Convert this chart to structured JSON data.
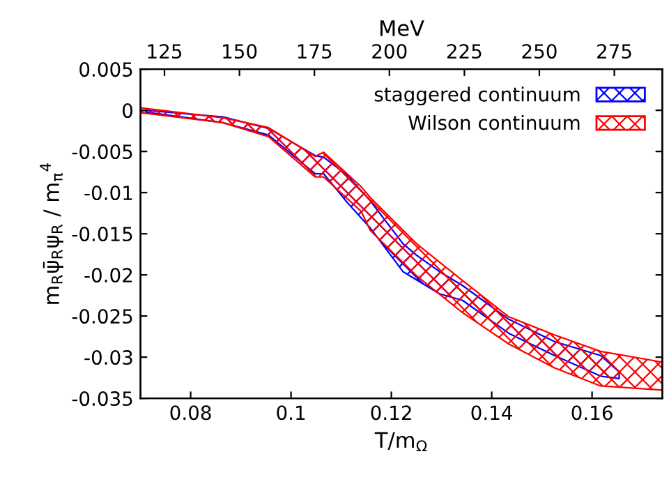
{
  "chart_data": {
    "type": "area",
    "xlabel": "T/m$_{Ω}$",
    "ylabel": "m$_{R}$ψ̄$_{R}$ψ$_{R}$ / m$_{π}$$^{4}$",
    "x2label": "MeV",
    "xlim": [
      0.07,
      0.174
    ],
    "xticks": [
      0.08,
      0.1,
      0.12,
      0.14,
      0.16
    ],
    "x2lim": [
      117,
      291
    ],
    "x2ticks": [
      125,
      150,
      175,
      200,
      225,
      250,
      275
    ],
    "ylim": [
      -0.035,
      0.005
    ],
    "yticks": [
      0.005,
      0,
      -0.005,
      -0.01,
      -0.015,
      -0.02,
      -0.025,
      -0.03,
      -0.035
    ],
    "grid": false,
    "legend": "top right",
    "series": [
      {
        "name": "staggered continuum",
        "color": "#0000ff",
        "x": [
          0.071,
          0.0864,
          0.0955,
          0.1048,
          0.1065,
          0.1112,
          0.1158,
          0.1223,
          0.125,
          0.1296,
          0.1342,
          0.1434,
          0.1525,
          0.1617,
          0.1654
        ],
        "lower": [
          -0.0002,
          -0.0015,
          -0.003,
          -0.0077,
          -0.0077,
          -0.0112,
          -0.0143,
          -0.0196,
          -0.0206,
          -0.0223,
          -0.0231,
          -0.0271,
          -0.0298,
          -0.0323,
          -0.0326
        ],
        "values": [
          null,
          null,
          null,
          null,
          null,
          null,
          null,
          null,
          null,
          null,
          null,
          null,
          null,
          null,
          null
        ],
        "upper": [
          0.0,
          -0.0008,
          -0.0022,
          -0.0055,
          -0.0057,
          -0.0079,
          -0.011,
          -0.0162,
          -0.0176,
          -0.0196,
          -0.0213,
          -0.0254,
          -0.0281,
          -0.0298,
          -0.0318
        ]
      },
      {
        "name": "Wilson continuum",
        "color": "#ff0000",
        "x": [
          0.07,
          0.0864,
          0.0955,
          0.1048,
          0.1065,
          0.114,
          0.1158,
          0.125,
          0.1342,
          0.1434,
          0.1525,
          0.1617,
          0.174
        ],
        "lower": [
          -0.0003,
          -0.0015,
          -0.0032,
          -0.0081,
          -0.0081,
          -0.0123,
          -0.0146,
          -0.0201,
          -0.0246,
          -0.0284,
          -0.0313,
          -0.0335,
          -0.034
        ],
        "values": [
          null,
          null,
          null,
          null,
          null,
          null,
          null,
          null,
          null,
          null,
          null,
          null,
          null
        ],
        "upper": [
          0.0003,
          -0.0009,
          -0.0021,
          -0.0056,
          -0.0051,
          -0.0093,
          -0.0106,
          -0.0162,
          -0.0207,
          -0.0251,
          -0.0273,
          -0.0293,
          -0.0306
        ]
      }
    ]
  }
}
